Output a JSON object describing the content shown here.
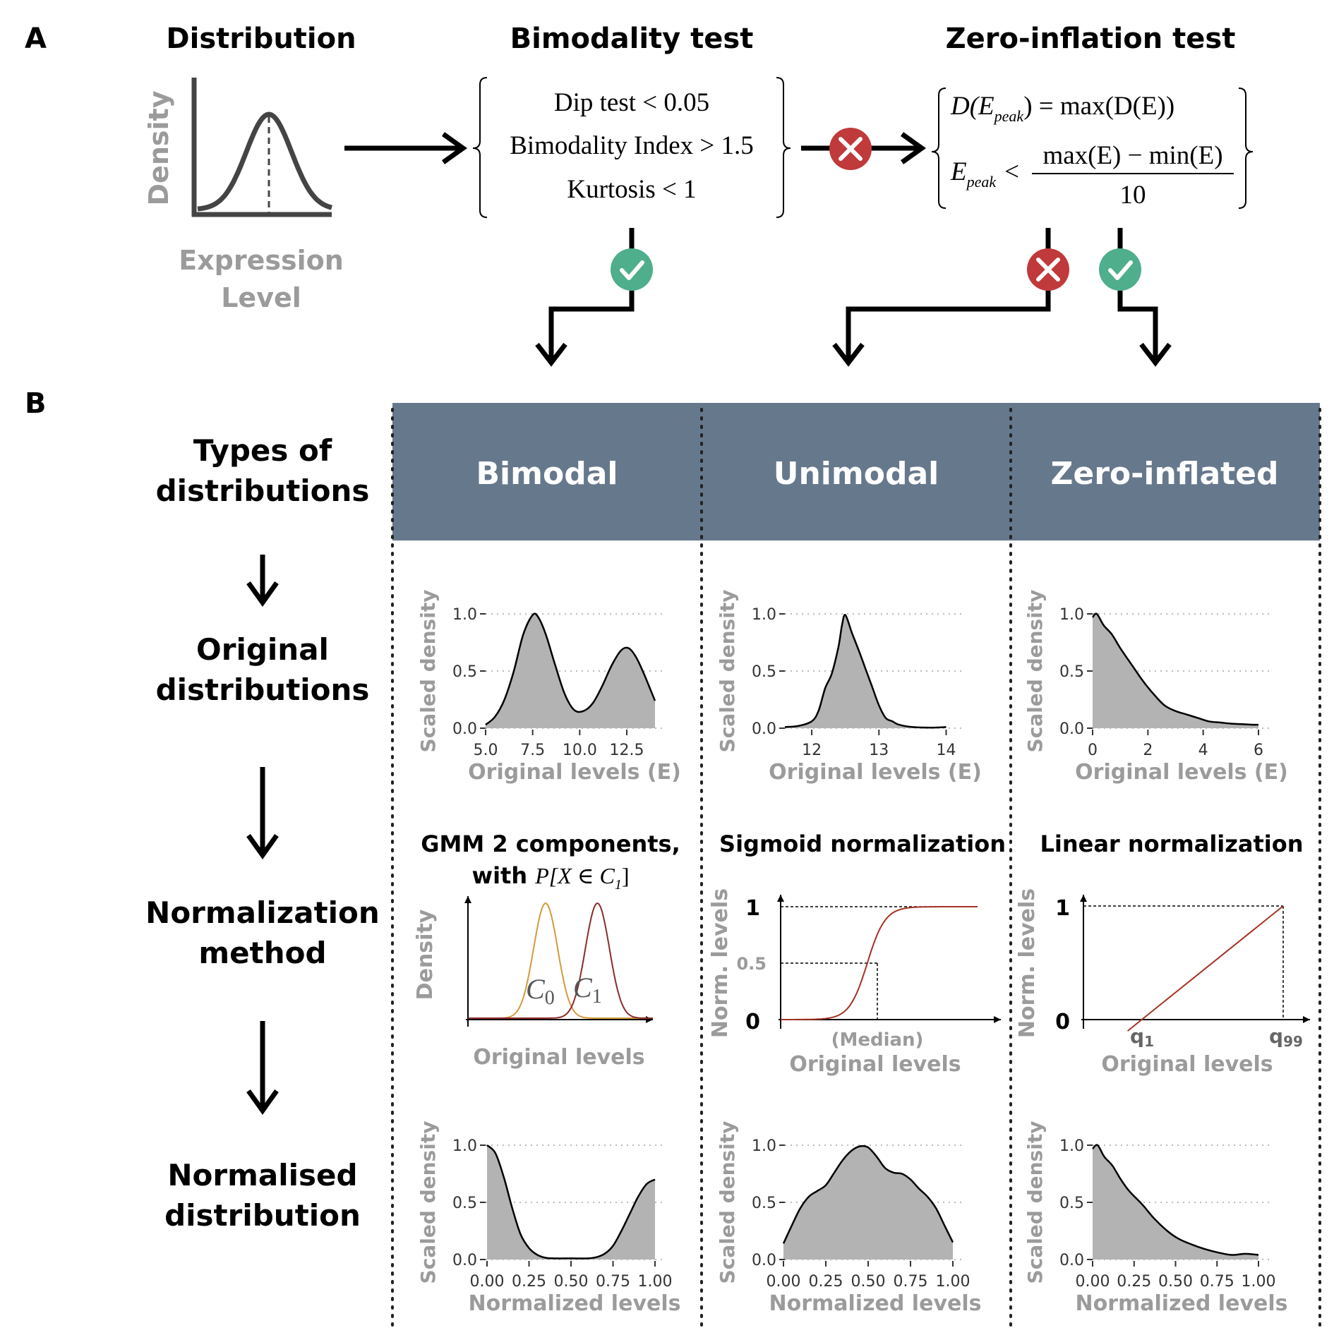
{
  "panel_a": {
    "label": "A",
    "distribution": {
      "title": "Distribution",
      "ylabel": "Density",
      "xlabel_line1": "Expression",
      "xlabel_line2": "Level"
    },
    "bimodality_test": {
      "title": "Bimodality test",
      "conditions": [
        "Dip test < 0.05",
        "Bimodality Index > 1.5",
        "Kurtosis < 1"
      ]
    },
    "zero_inflation_test": {
      "title": "Zero-inflation test",
      "eq1_lhs": "D(E",
      "eq1_sub": "peak",
      "eq1_rhs": ") = max(D(E))",
      "eq2_lhs": "E",
      "eq2_sub": "peak",
      "eq2_op": "<",
      "eq2_num": "max(E) − min(E)",
      "eq2_den": "10"
    },
    "colors": {
      "pass": "#4fae8c",
      "fail": "#c0393b"
    }
  },
  "panel_b": {
    "label": "B",
    "header_color": "#66788c",
    "row_labels": {
      "types": [
        "Types of",
        "distributions"
      ],
      "original": [
        "Original",
        "distributions"
      ],
      "method": [
        "Normalization",
        "method"
      ],
      "normalised": [
        "Normalised",
        "distribution"
      ]
    },
    "columns": [
      "Bimodal",
      "Unimodal",
      "Zero-inflated"
    ],
    "methods": {
      "gmm_title1": "GMM 2 components,",
      "gmm_title2_prefix": "with ",
      "gmm_title2_math": "P[X ∈ C",
      "gmm_title2_sub": "1",
      "gmm_title2_end": "]",
      "gmm_ylabel": "Density",
      "gmm_xlabel": "Original levels",
      "gmm_c0": "C",
      "gmm_c0_sub": "0",
      "gmm_c1": "C",
      "gmm_c1_sub": "1",
      "sigmoid_title": "Sigmoid normalization",
      "sigmoid_ylabel": "Norm. levels",
      "sigmoid_xlabel": "Original levels",
      "sigmoid_median": "(Median)",
      "sigmoid_ticks": [
        "1",
        "0.5",
        "0"
      ],
      "linear_title": "Linear normalization",
      "linear_ylabel": "Norm. levels",
      "linear_xlabel": "Original levels",
      "linear_ticks": [
        "1",
        "0"
      ],
      "linear_q1": "q",
      "linear_q1_sub": "1",
      "linear_q99": "q",
      "linear_q99_sub": "99",
      "curve_colors": {
        "c0": "#d49a3a",
        "c1": "#8b2b2b",
        "sigmoid": "#a33224",
        "linear": "#a33224"
      }
    }
  },
  "chart_data": [
    {
      "type": "area",
      "panel": "Bimodal original",
      "xlabel": "Original levels (E)",
      "ylabel": "Scaled density",
      "xticks": [
        "5.0",
        "7.5",
        "10.0",
        "12.5"
      ],
      "yticks": [
        "0.0",
        "0.5",
        "1.0"
      ],
      "xlim": [
        5,
        14
      ],
      "ylim": [
        0,
        1
      ],
      "x": [
        5.0,
        5.5,
        6.0,
        6.5,
        7.0,
        7.5,
        7.8,
        8.2,
        8.7,
        9.2,
        9.7,
        10.2,
        10.7,
        11.2,
        11.7,
        12.2,
        12.6,
        13.0,
        13.4,
        13.8,
        14.0
      ],
      "y": [
        0.03,
        0.1,
        0.25,
        0.5,
        0.82,
        0.99,
        0.97,
        0.82,
        0.55,
        0.3,
        0.16,
        0.15,
        0.22,
        0.37,
        0.55,
        0.68,
        0.7,
        0.62,
        0.48,
        0.32,
        0.24
      ]
    },
    {
      "type": "area",
      "panel": "Unimodal original",
      "xlabel": "Original levels (E)",
      "ylabel": "Scaled density",
      "xticks": [
        "12",
        "13",
        "14"
      ],
      "yticks": [
        "0.0",
        "0.5",
        "1.0"
      ],
      "xlim": [
        11.6,
        14.1
      ],
      "ylim": [
        0,
        1
      ],
      "x": [
        11.6,
        11.8,
        12.0,
        12.1,
        12.2,
        12.3,
        12.4,
        12.45,
        12.5,
        12.6,
        12.7,
        12.8,
        12.9,
        13.0,
        13.1,
        13.2,
        13.3,
        13.5,
        13.8,
        14.0
      ],
      "y": [
        0.01,
        0.02,
        0.06,
        0.15,
        0.35,
        0.48,
        0.72,
        0.9,
        0.99,
        0.83,
        0.68,
        0.52,
        0.36,
        0.2,
        0.09,
        0.06,
        0.03,
        0.01,
        0.005,
        0.01
      ]
    },
    {
      "type": "area",
      "panel": "Zero-inflated original",
      "xlabel": "Original levels (E)",
      "ylabel": "Scaled density",
      "xticks": [
        "0",
        "2",
        "4",
        "6"
      ],
      "yticks": [
        "0.0",
        "0.5",
        "1.0"
      ],
      "xlim": [
        0,
        6
      ],
      "ylim": [
        0,
        1
      ],
      "x": [
        0,
        0.15,
        0.4,
        0.7,
        1.0,
        1.4,
        1.8,
        2.2,
        2.6,
        3.0,
        3.4,
        3.8,
        4.2,
        4.6,
        5.0,
        5.4,
        5.8,
        6.0
      ],
      "y": [
        0.97,
        1.0,
        0.9,
        0.82,
        0.7,
        0.56,
        0.42,
        0.3,
        0.2,
        0.15,
        0.12,
        0.09,
        0.06,
        0.05,
        0.04,
        0.035,
        0.03,
        0.03
      ]
    },
    {
      "type": "line",
      "panel": "GMM 2 components",
      "xlabel": "Original levels",
      "ylabel": "Density",
      "series": [
        {
          "name": "C0",
          "mean": 0.42,
          "sd": 0.065,
          "peak": 1.0
        },
        {
          "name": "C1",
          "mean": 0.7,
          "sd": 0.065,
          "peak": 1.0
        }
      ]
    },
    {
      "type": "line",
      "panel": "Sigmoid normalization",
      "xlabel": "Original levels",
      "ylabel": "Norm. levels",
      "ylim": [
        0,
        1
      ],
      "median_x": 0.44
    },
    {
      "type": "line",
      "panel": "Linear normalization",
      "xlabel": "Original levels",
      "ylabel": "Norm. levels",
      "ylim": [
        0,
        1
      ],
      "q1_x": 0.28,
      "q99_x": 0.96
    },
    {
      "type": "area",
      "panel": "Bimodal normalised",
      "xlabel": "Normalized levels",
      "ylabel": "Scaled density",
      "xticks": [
        "0.00",
        "0.25",
        "0.50",
        "0.75",
        "1.00"
      ],
      "yticks": [
        "0.0",
        "0.5",
        "1.0"
      ],
      "xlim": [
        0,
        1
      ],
      "ylim": [
        0,
        1
      ],
      "x": [
        0.0,
        0.05,
        0.1,
        0.15,
        0.2,
        0.25,
        0.3,
        0.35,
        0.4,
        0.5,
        0.6,
        0.65,
        0.7,
        0.75,
        0.8,
        0.85,
        0.9,
        0.95,
        1.0
      ],
      "y": [
        1.0,
        0.93,
        0.72,
        0.45,
        0.22,
        0.1,
        0.04,
        0.015,
        0.01,
        0.01,
        0.01,
        0.02,
        0.05,
        0.12,
        0.25,
        0.4,
        0.55,
        0.66,
        0.7
      ]
    },
    {
      "type": "area",
      "panel": "Unimodal normalised",
      "xlabel": "Normalized levels",
      "ylabel": "Scaled density",
      "xticks": [
        "0.00",
        "0.25",
        "0.50",
        "0.75",
        "1.00"
      ],
      "yticks": [
        "0.0",
        "0.5",
        "1.0"
      ],
      "xlim": [
        0,
        1
      ],
      "ylim": [
        0,
        1
      ],
      "x": [
        0.0,
        0.05,
        0.1,
        0.15,
        0.2,
        0.25,
        0.3,
        0.35,
        0.4,
        0.45,
        0.5,
        0.55,
        0.6,
        0.65,
        0.7,
        0.75,
        0.8,
        0.85,
        0.9,
        0.95,
        1.0
      ],
      "y": [
        0.14,
        0.3,
        0.45,
        0.55,
        0.6,
        0.65,
        0.76,
        0.87,
        0.95,
        0.99,
        0.98,
        0.9,
        0.8,
        0.76,
        0.75,
        0.7,
        0.62,
        0.55,
        0.45,
        0.3,
        0.15
      ]
    },
    {
      "type": "area",
      "panel": "Zero-inflated normalised",
      "xlabel": "Normalized levels",
      "ylabel": "Scaled density",
      "xticks": [
        "0.00",
        "0.25",
        "0.50",
        "0.75",
        "1.00"
      ],
      "yticks": [
        "0.0",
        "0.5",
        "1.0"
      ],
      "xlim": [
        0,
        1
      ],
      "ylim": [
        0,
        1
      ],
      "x": [
        0.0,
        0.03,
        0.07,
        0.12,
        0.17,
        0.22,
        0.3,
        0.37,
        0.45,
        0.52,
        0.6,
        0.68,
        0.76,
        0.84,
        0.92,
        1.0
      ],
      "y": [
        0.97,
        1.0,
        0.9,
        0.82,
        0.7,
        0.6,
        0.48,
        0.36,
        0.25,
        0.18,
        0.13,
        0.09,
        0.06,
        0.04,
        0.05,
        0.04
      ]
    }
  ]
}
